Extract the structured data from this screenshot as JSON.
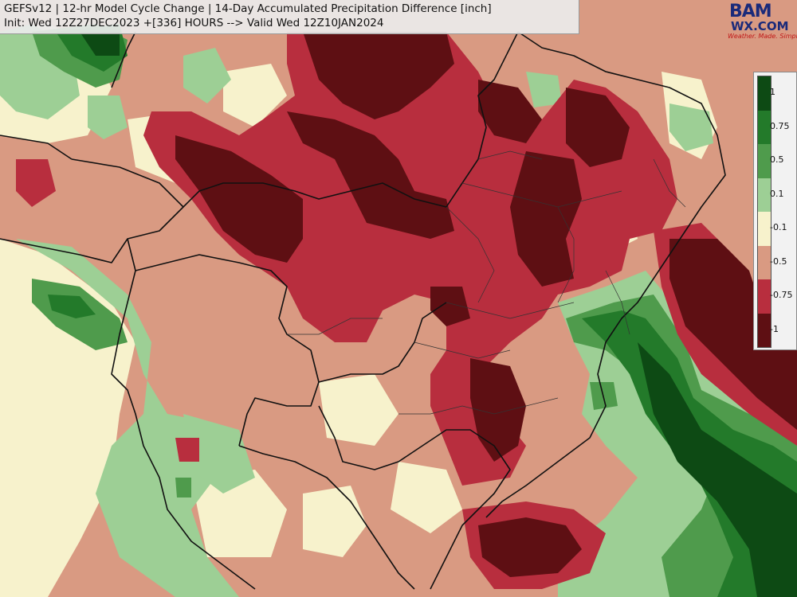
{
  "title": {
    "line1": "GEFSv12 | 12-hr Model Cycle Change | 14-Day Accumulated Precipitation Difference [inch]",
    "line2": "Init: Wed 12Z27DEC2023 +[336] HOURS --> Valid Wed 12Z10JAN2024"
  },
  "logo": {
    "main": "BAM",
    "sub": "WX.COM",
    "tagline": "Weather. Made. Simple."
  },
  "legend": {
    "labels": [
      "1",
      "0.75",
      "0.5",
      "0.1",
      "-0.1",
      "-0.5",
      "-0.75",
      "-1"
    ],
    "colors": [
      "#0d4a14",
      "#237a2a",
      "#4f9b4c",
      "#9dcf95",
      "#f7f2cc",
      "#d99a82",
      "#b82e3e",
      "#5e0f13"
    ]
  },
  "colors": {
    "ocean_positive": "#2e7f32",
    "land_negative": "#d99a82",
    "strong_negative": "#5e0f13",
    "border": "#111111"
  }
}
